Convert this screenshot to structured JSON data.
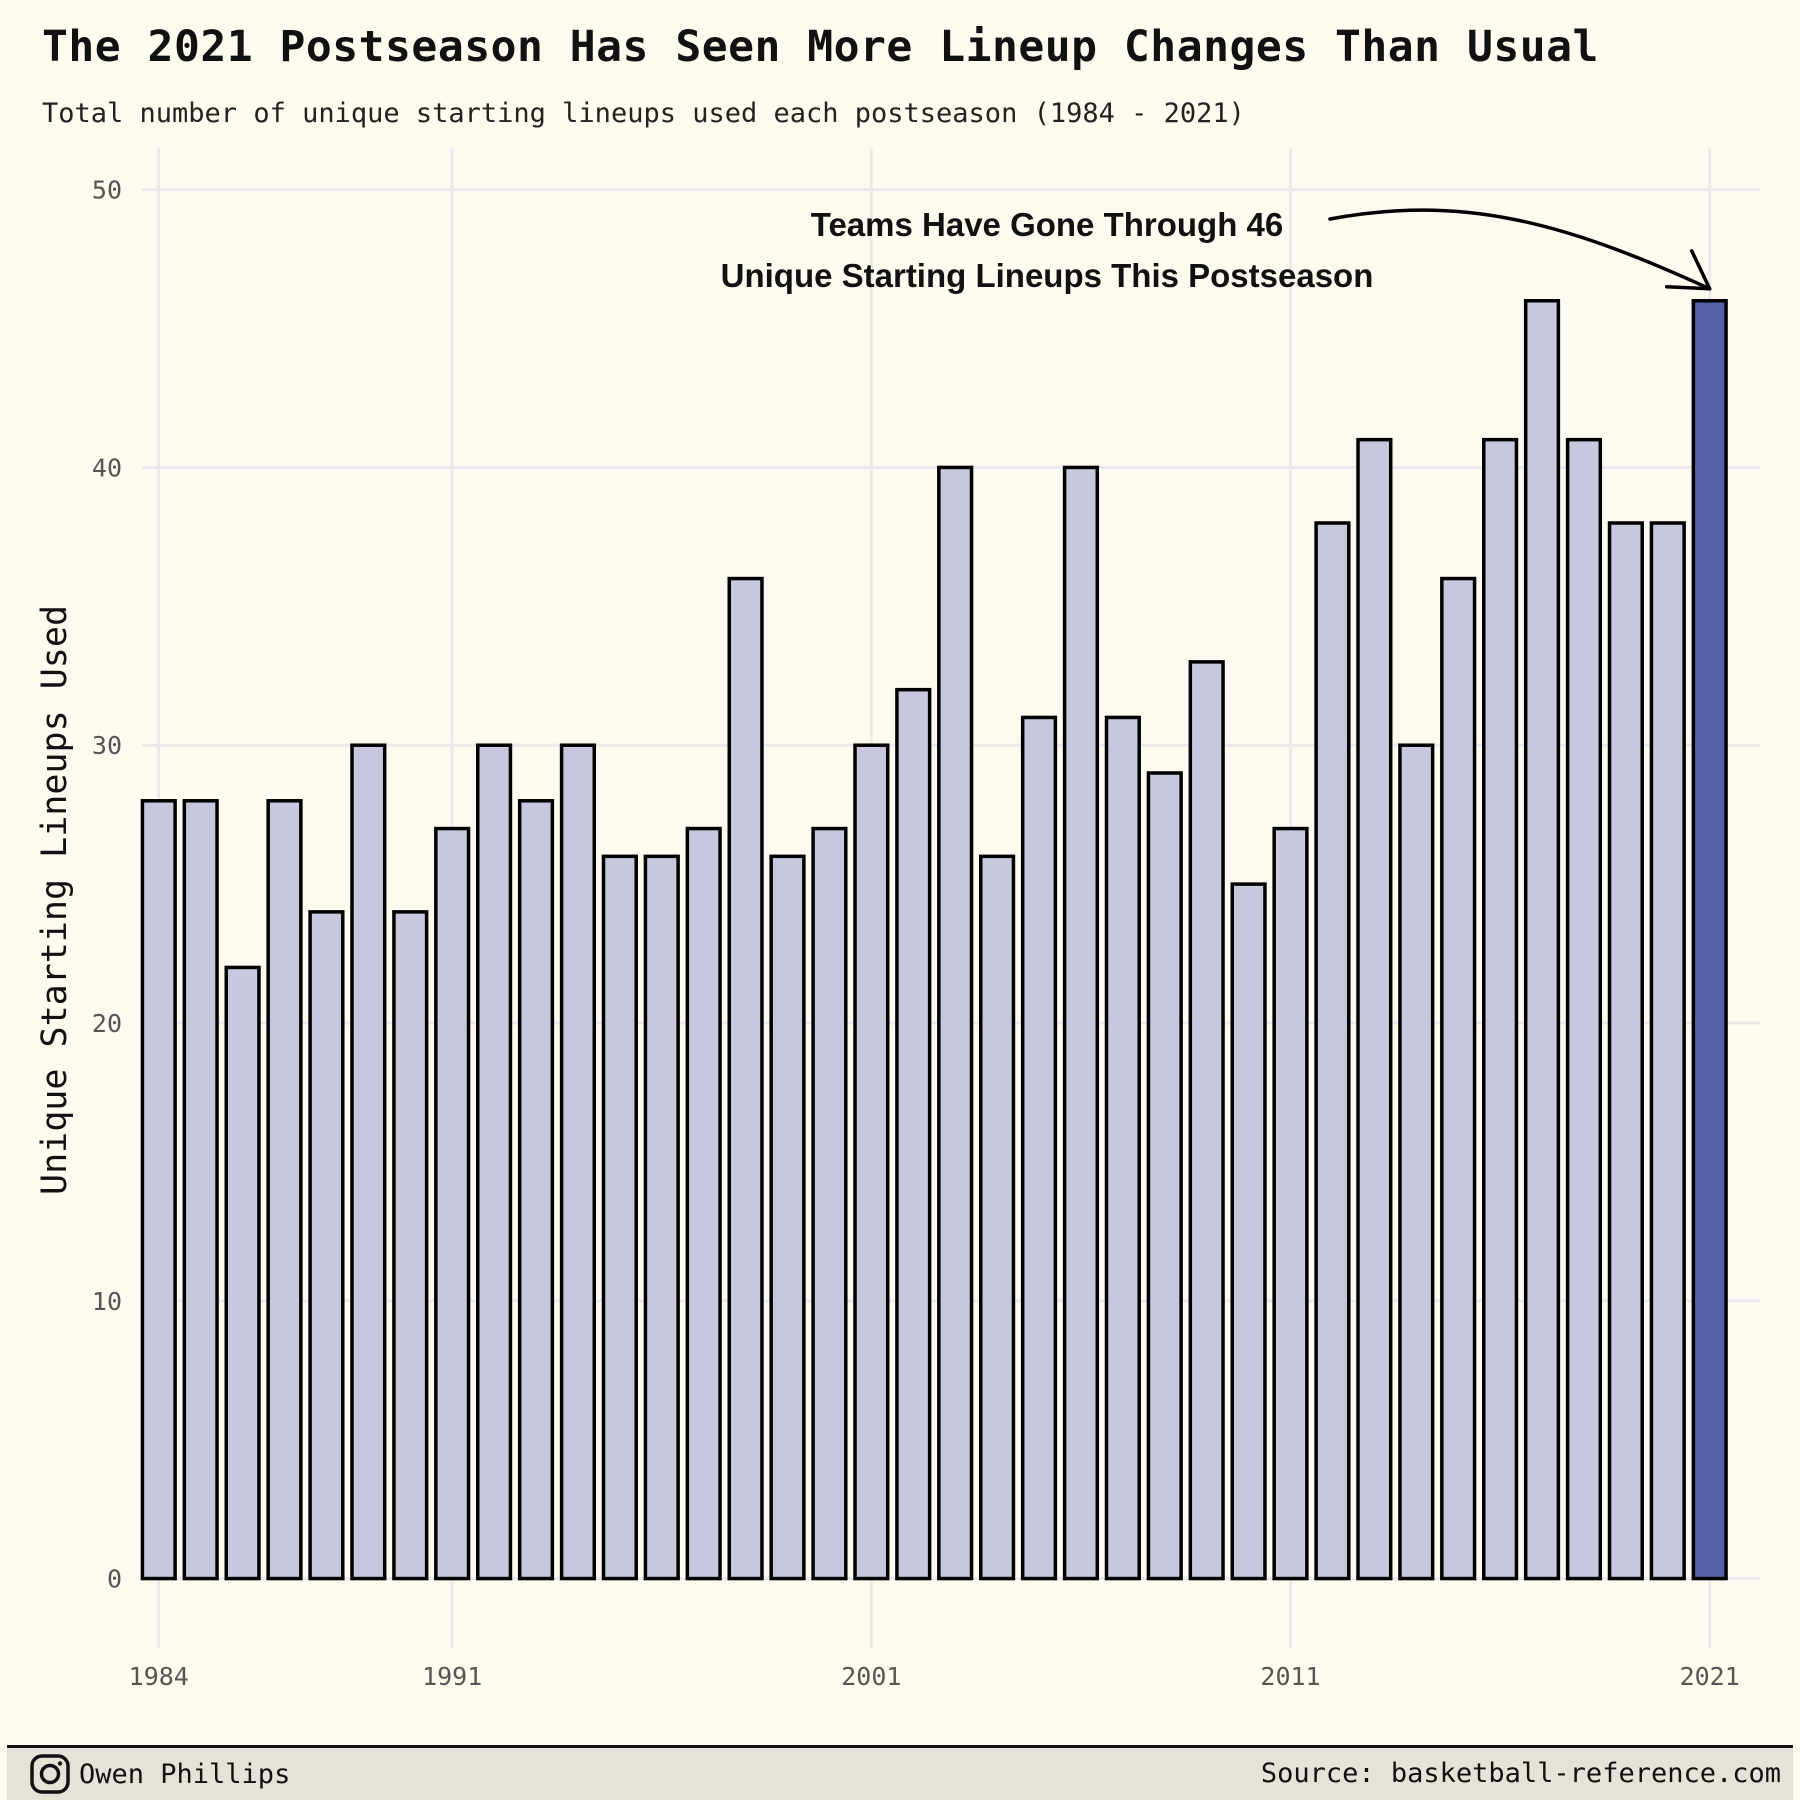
{
  "header": {
    "title": "The 2021 Postseason Has Seen More Lineup Changes Than Usual",
    "subtitle": "Total number of unique starting lineups used each postseason (1984 - 2021)"
  },
  "chart_data": {
    "type": "bar",
    "title": "The 2021 Postseason Has Seen More Lineup Changes Than Usual",
    "subtitle": "Total number of unique starting lineups used each postseason (1984 - 2021)",
    "xlabel": "",
    "ylabel": "Unique Starting Lineups Used",
    "x": [
      1984,
      1985,
      1986,
      1987,
      1988,
      1989,
      1990,
      1991,
      1992,
      1993,
      1994,
      1995,
      1996,
      1997,
      1998,
      1999,
      2000,
      2001,
      2002,
      2003,
      2004,
      2005,
      2006,
      2007,
      2008,
      2009,
      2010,
      2011,
      2012,
      2013,
      2014,
      2015,
      2016,
      2017,
      2018,
      2019,
      2020,
      2021
    ],
    "values": [
      28,
      28,
      22,
      28,
      24,
      30,
      24,
      27,
      30,
      28,
      30,
      26,
      26,
      27,
      36,
      26,
      27,
      30,
      32,
      40,
      26,
      31,
      40,
      31,
      29,
      33,
      25,
      27,
      38,
      41,
      30,
      36,
      41,
      46,
      41,
      38,
      38,
      46
    ],
    "highlight": 2021,
    "xlim": [
      1983.6,
      2022.2
    ],
    "ylim": [
      -2.5,
      51.5
    ],
    "x_ticks": [
      "1984",
      "1991",
      "2001",
      "2011",
      "2021"
    ],
    "y_ticks": [
      "0",
      "10",
      "20",
      "30",
      "40",
      "50"
    ],
    "grid": true,
    "legend": "none",
    "colors": {
      "bar": "#c7c8dd",
      "bar_highlight": "#5561a8",
      "bar_outline": "#000000",
      "grid": "#ece9ec",
      "background": "#fefaf0"
    },
    "annotation": {
      "line1": "Teams Have Gone Through 46",
      "line2": "Unique Starting Lineups This Postseason",
      "target_year": 2021,
      "target_value": 46
    }
  },
  "footer": {
    "author": "Owen Phillips",
    "author_icon": "instagram-icon",
    "source": "Source: basketball-reference.com"
  }
}
